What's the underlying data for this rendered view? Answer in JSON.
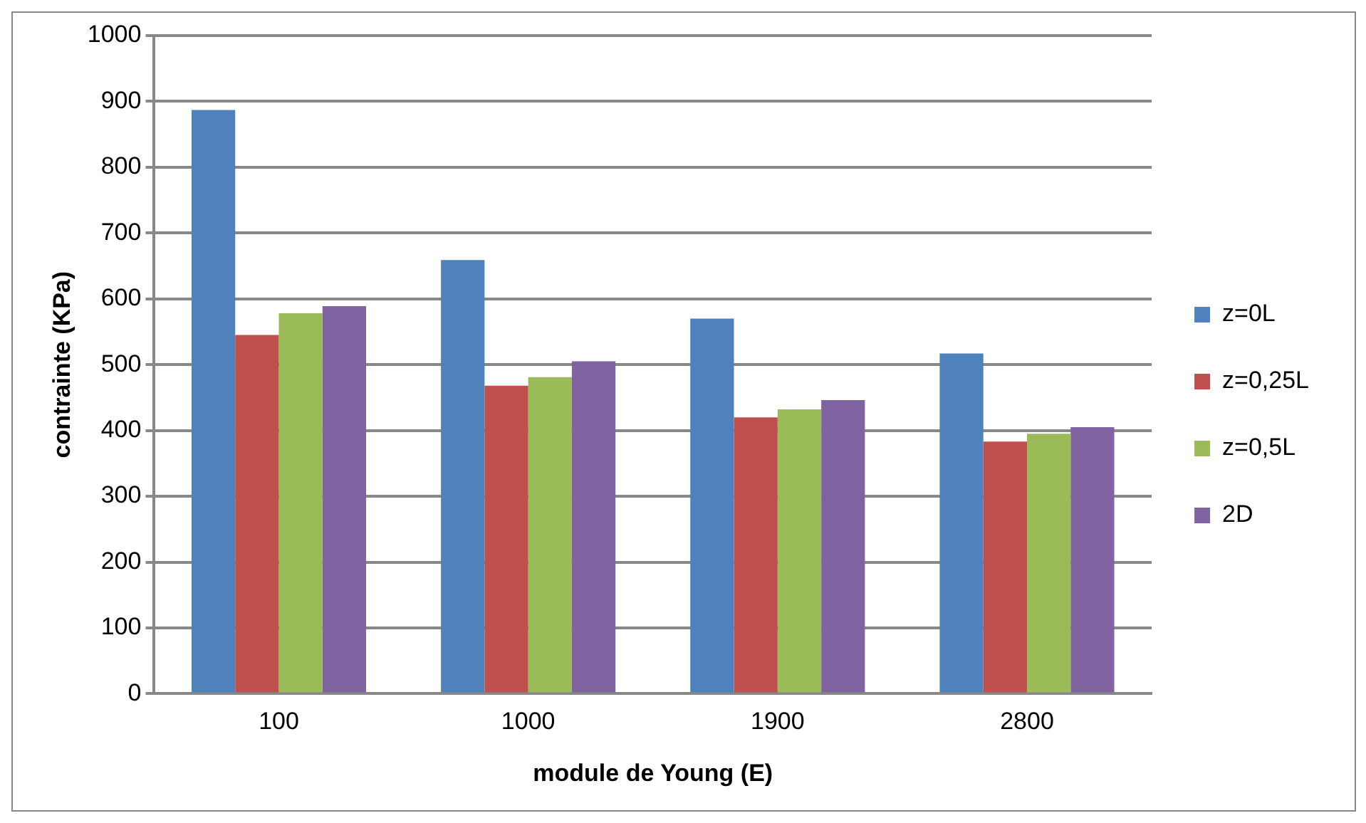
{
  "chart_data": {
    "type": "bar",
    "xlabel": "module de Young (E)",
    "ylabel": "contrainte (KPa)",
    "categories": [
      "100",
      "1000",
      "1900",
      "2800"
    ],
    "series": [
      {
        "name": "z=0L",
        "color": "#4f81bd",
        "values": [
          887,
          659,
          570,
          517
        ]
      },
      {
        "name": "z=0,25L",
        "color": "#c0504d",
        "values": [
          545,
          468,
          420,
          383
        ]
      },
      {
        "name": "z=0,5L",
        "color": "#9bbb59",
        "values": [
          578,
          481,
          432,
          395
        ]
      },
      {
        "name": "2D",
        "color": "#8064a2",
        "values": [
          589,
          505,
          446,
          405
        ]
      }
    ],
    "ylim": [
      0,
      1000
    ],
    "yticks": [
      0,
      100,
      200,
      300,
      400,
      500,
      600,
      700,
      800,
      900,
      1000
    ],
    "grid": "y",
    "legend": "right"
  }
}
